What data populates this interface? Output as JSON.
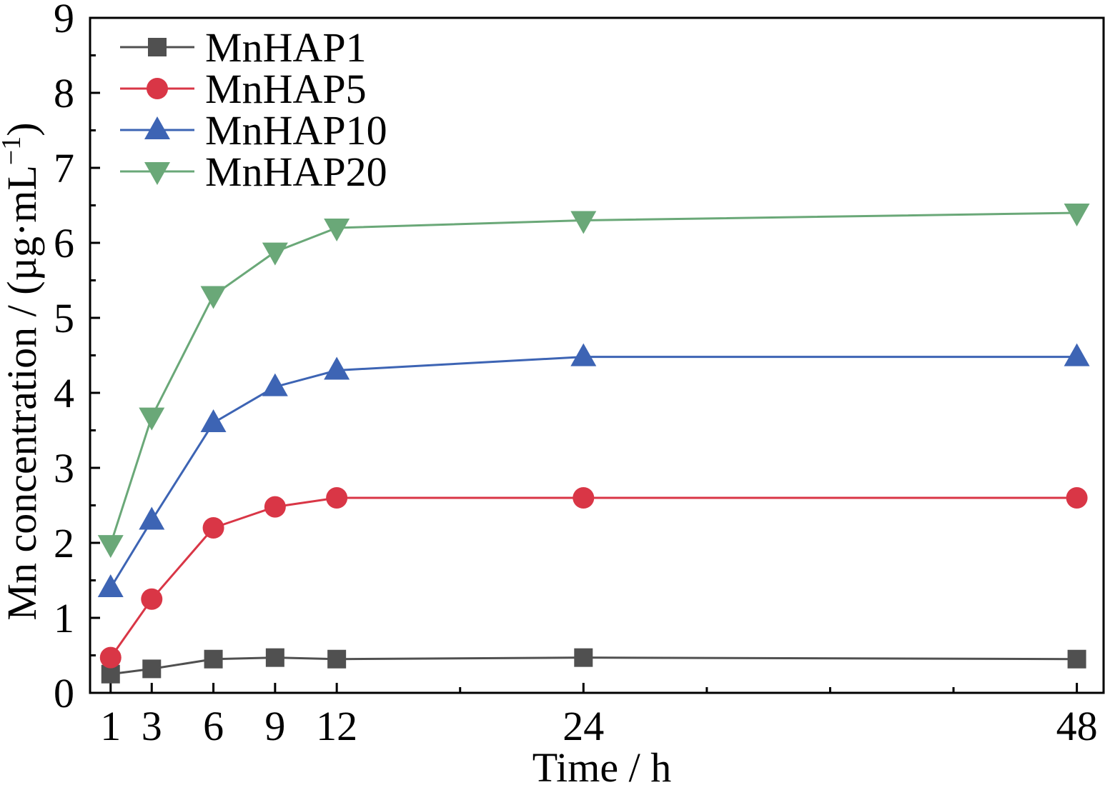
{
  "chart_data": {
    "type": "line",
    "xlabel": "Time / h",
    "ylabel_main": "Mn concentration / (µg·mL",
    "ylabel_sup": "−1",
    "ylabel_close": ")",
    "xlim": [
      0,
      49.3
    ],
    "ylim": [
      0,
      9
    ],
    "x_ticks": [
      1,
      3,
      6,
      9,
      12,
      24,
      48
    ],
    "x_minor_ticks": [
      18,
      30,
      36,
      42
    ],
    "y_ticks": [
      0,
      1,
      2,
      3,
      4,
      5,
      6,
      7,
      8,
      9
    ],
    "x": [
      1,
      3,
      6,
      9,
      12,
      24,
      48
    ],
    "legend_position": "top-left",
    "series": [
      {
        "name": "MnHAP1",
        "marker": "square",
        "color": "#505050",
        "values": [
          0.25,
          0.32,
          0.45,
          0.47,
          0.45,
          0.47,
          0.45
        ]
      },
      {
        "name": "MnHAP5",
        "marker": "circle",
        "color": "#d93646",
        "values": [
          0.47,
          1.25,
          2.2,
          2.48,
          2.6,
          2.6,
          2.6
        ]
      },
      {
        "name": "MnHAP10",
        "marker": "triangle-up",
        "color": "#3d64b4",
        "values": [
          1.4,
          2.3,
          3.6,
          4.08,
          4.3,
          4.48,
          4.48
        ]
      },
      {
        "name": "MnHAP20",
        "marker": "triangle-down",
        "color": "#6aa878",
        "values": [
          1.98,
          3.68,
          5.3,
          5.88,
          6.2,
          6.3,
          6.4
        ]
      }
    ]
  }
}
